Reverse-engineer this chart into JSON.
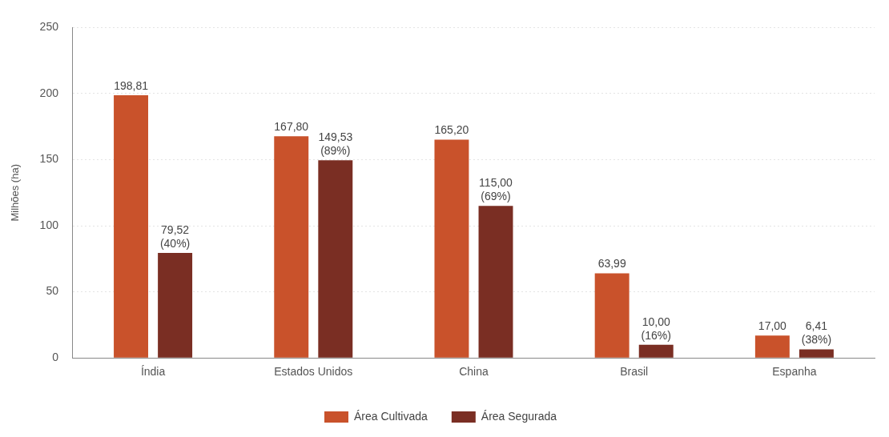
{
  "chart_data": {
    "type": "bar",
    "ylabel": "Milhões (ha)",
    "categories": [
      "Índia",
      "Estados Unidos",
      "China",
      "Brasil",
      "Espanha"
    ],
    "series": [
      {
        "name": "Área Cultivada",
        "color": "#c9522b",
        "values": [
          198.81,
          167.8,
          165.2,
          63.99,
          17
        ],
        "value_labels": [
          "198,81",
          "167,80",
          "165,20",
          "63,99",
          "17,00"
        ]
      },
      {
        "name": "Área Segurada",
        "color": "#7a2e23",
        "values": [
          79.52,
          149.53,
          115,
          10,
          6.41
        ],
        "value_labels": [
          "79,52\n(40%)",
          "149,53\n(89%)",
          "115,00\n(69%)",
          "10,00\n(16%)",
          "6,41\n(38%)"
        ]
      }
    ],
    "ylim": [
      0,
      250
    ],
    "yticks": [
      0,
      50,
      100,
      150,
      200,
      250
    ],
    "grid": "y",
    "legend": "bottom"
  }
}
